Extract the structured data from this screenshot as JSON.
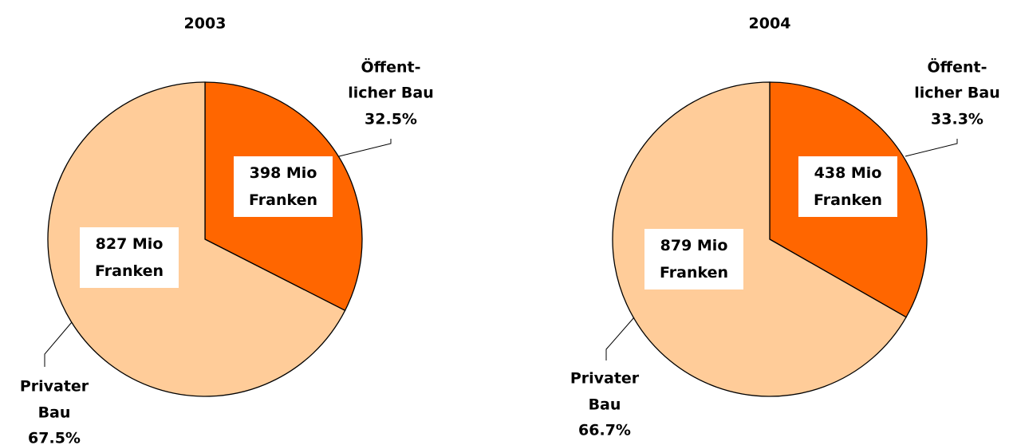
{
  "chart_data": [
    {
      "type": "pie",
      "title": "2003",
      "categories": [
        [
          "Öffent-",
          "licher Bau"
        ],
        [
          "Privater",
          "Bau"
        ]
      ],
      "values": [
        398,
        827
      ],
      "value_labels": [
        "398 Mio Franken",
        "827 Mio Franken"
      ],
      "percentages": [
        32.5,
        67.5
      ],
      "percentage_labels": [
        "32.5%",
        "67.5%"
      ],
      "colors": [
        "#ff6600",
        "#ffcc99"
      ]
    },
    {
      "type": "pie",
      "title": "2004",
      "categories": [
        [
          "Öffent-",
          "licher Bau"
        ],
        [
          "Privater",
          "Bau"
        ]
      ],
      "values": [
        438,
        879
      ],
      "value_labels": [
        "438 Mio Franken",
        "879 Mio Franken"
      ],
      "percentages": [
        33.3,
        66.7
      ],
      "percentage_labels": [
        "33.3%",
        "66.7%"
      ],
      "colors": [
        "#ff6600",
        "#ffcc99"
      ]
    }
  ]
}
